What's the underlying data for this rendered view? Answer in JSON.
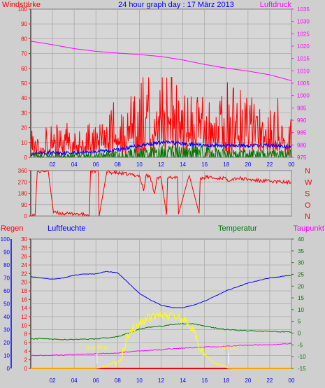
{
  "header": {
    "left_label": "Windstärke",
    "title": "24 hour graph day : 17 März 2013",
    "right_label": "Luftdruck"
  },
  "colors": {
    "background": "#cfcfcf",
    "plot_background": "#d6d6d6",
    "grid": "#aaaaaa",
    "red": "#ff0000",
    "blue": "#0000ff",
    "green": "#007700",
    "magenta": "#ff00ff",
    "yellow": "#ffff00",
    "light_blue": "#cfe6ff",
    "white": "#ffffff"
  },
  "bottom_labels": {
    "regen": "Regen",
    "luftfeuchte": "Luftfeuchte",
    "temperatur": "Temperatur",
    "taupunkt": "Taupunkt",
    "sun_rise": "Sun Rise",
    "sun_set": "Sun Set"
  },
  "chart_data": [
    {
      "type": "line",
      "name": "wind",
      "xlim": [
        0,
        24
      ],
      "x_ticks": [
        "02",
        "04",
        "06",
        "08",
        "10",
        "12",
        "14",
        "16",
        "18",
        "20",
        "22",
        "00"
      ],
      "left_axis": {
        "label": "Windstärke",
        "ylim": [
          0,
          100
        ],
        "ticks": [
          0,
          10,
          20,
          30,
          40,
          50,
          60,
          70,
          80,
          90,
          100
        ]
      },
      "right_axis": {
        "label": "Luftdruck",
        "ylim": [
          975,
          1035
        ],
        "ticks": [
          975,
          980,
          985,
          990,
          995,
          1000,
          1005,
          1010,
          1015,
          1020,
          1025,
          1030,
          1035
        ]
      },
      "series": [
        {
          "color": "red",
          "axis": "left",
          "x": [
            0,
            1,
            2,
            3,
            4,
            5,
            6,
            7,
            8,
            9,
            10,
            11,
            12,
            13,
            14,
            15,
            16,
            17,
            18,
            19,
            20,
            21,
            22,
            23,
            24
          ],
          "values": [
            6,
            7,
            7,
            8,
            7,
            7,
            8,
            12,
            13,
            14,
            17,
            19,
            21,
            20,
            18,
            18,
            17,
            16,
            15,
            15,
            14,
            14,
            13,
            12,
            11
          ]
        },
        {
          "color": "blue",
          "axis": "left",
          "x": [
            0,
            2,
            4,
            6,
            8,
            10,
            12,
            13,
            14,
            16,
            18,
            20,
            22,
            24
          ],
          "values": [
            2,
            3,
            3,
            4,
            5,
            8,
            10,
            10,
            9,
            8,
            8,
            8,
            8,
            7
          ]
        },
        {
          "color": "green",
          "axis": "left",
          "x": [
            0,
            4,
            8,
            12,
            16,
            20,
            24
          ],
          "values": [
            1,
            1,
            2,
            3,
            3,
            2,
            2
          ]
        },
        {
          "color": "magenta",
          "axis": "right",
          "x": [
            0,
            2,
            4,
            6,
            8,
            10,
            12,
            14,
            16,
            18,
            20,
            22,
            24
          ],
          "values": [
            1022.0,
            1020.6,
            1019.0,
            1017.9,
            1017.2,
            1016.6,
            1015.8,
            1014.4,
            1012.6,
            1011.1,
            1009.9,
            1008.4,
            1006.0
          ]
        }
      ]
    },
    {
      "type": "line",
      "name": "wind direction",
      "xlim": [
        0,
        24
      ],
      "x_ticks": [
        "02",
        "04",
        "06",
        "08",
        "10",
        "12",
        "14",
        "16",
        "18",
        "20",
        "22",
        "00"
      ],
      "left_axis": {
        "ylim": [
          0,
          360
        ],
        "ticks": [
          0,
          90,
          180,
          270,
          360
        ]
      },
      "right_axis": {
        "labels": [
          "N",
          "W",
          "S",
          "O",
          "N"
        ]
      },
      "series": [
        {
          "color": "red",
          "x": [
            0,
            0.4,
            0.6,
            1.1,
            1.6,
            2.1,
            3.2,
            3.5,
            4.0,
            4.5,
            5.0,
            5.4,
            5.5,
            6.2,
            6.3,
            7.0,
            8.0,
            9.0,
            10.0,
            10.4,
            10.6,
            11.0,
            11.4,
            11.6,
            12.0,
            12.5,
            12.6,
            13.5,
            13.6,
            14.5,
            14.6,
            15.5,
            15.6,
            16.5,
            17.0,
            17.8,
            18.0,
            19.0,
            20.0,
            21.0,
            22.0,
            23.0,
            24.0
          ],
          "values": [
            5,
            5,
            350,
            355,
            360,
            25,
            20,
            15,
            20,
            15,
            10,
            10,
            355,
            355,
            0,
            350,
            340,
            330,
            320,
            200,
            320,
            310,
            180,
            300,
            300,
            10,
            300,
            310,
            15,
            300,
            320,
            20,
            300,
            310,
            295,
            305,
            285,
            300,
            290,
            280,
            275,
            270,
            265
          ]
        }
      ]
    },
    {
      "type": "line",
      "name": "humidity temperature",
      "xlim": [
        0,
        24
      ],
      "x_ticks": [
        "02",
        "04",
        "06",
        "08",
        "10",
        "12",
        "14",
        "16",
        "18",
        "20",
        "22",
        "00"
      ],
      "left_axis_regen": {
        "label": "Regen",
        "ylim": [
          0,
          30
        ],
        "ticks": [
          0,
          2,
          4,
          6,
          8,
          10,
          12,
          14,
          16,
          18,
          20,
          22,
          24,
          26,
          28,
          30
        ]
      },
      "left_axis_luftfeuchte": {
        "label": "Luftfeuchte",
        "ylim": [
          0,
          100
        ],
        "ticks": [
          0,
          10,
          20,
          30,
          40,
          50,
          60,
          70,
          80,
          90,
          100
        ]
      },
      "right_axis_temperatur": {
        "label": "Temperatur",
        "ylim": [
          -15,
          40
        ],
        "ticks": [
          -15,
          -10,
          -5,
          0,
          5,
          10,
          15,
          20,
          25,
          30,
          35,
          40
        ]
      },
      "annotations": [
        "Sun Rise",
        "Sun Set"
      ],
      "series": [
        {
          "color": "blue",
          "axis": "luftfeuchte",
          "x": [
            0,
            1,
            2,
            3,
            4,
            5,
            6,
            7,
            8,
            9,
            10,
            11,
            12,
            13,
            14,
            15,
            16,
            17,
            18,
            19,
            20,
            21,
            22,
            23,
            24
          ],
          "values": [
            71,
            70,
            69,
            70,
            72,
            73,
            73,
            75,
            74,
            66,
            58,
            53,
            49,
            47,
            47,
            49,
            52,
            56,
            60,
            63,
            66,
            68,
            70,
            71,
            72
          ]
        },
        {
          "color": "green",
          "axis": "temperatur",
          "x": [
            0,
            1,
            2,
            3,
            4,
            5,
            6,
            7,
            8,
            9,
            10,
            11,
            12,
            13,
            14,
            15,
            16,
            17,
            18,
            19,
            20,
            21,
            22,
            23,
            24
          ],
          "values": [
            -2.5,
            -2.3,
            -2.5,
            -2.7,
            -2.7,
            -2.6,
            -2.4,
            -2.0,
            -1.5,
            0.0,
            1.7,
            2.6,
            3.0,
            3.6,
            4.0,
            4.0,
            3.0,
            2.2,
            1.5,
            1.2,
            1.0,
            0.9,
            0.8,
            0.6,
            0.4
          ]
        },
        {
          "color": "magenta",
          "axis": "temperatur",
          "x": [
            0,
            2,
            4,
            6,
            8,
            10,
            12,
            14,
            16,
            18,
            20,
            22,
            24
          ],
          "values": [
            -9.5,
            -9.4,
            -9.1,
            -8.8,
            -8.4,
            -7.6,
            -7.0,
            -6.4,
            -5.9,
            -5.6,
            -5.1,
            -4.9,
            -4.5
          ]
        },
        {
          "color": "red",
          "axis": "regen",
          "x": [
            0,
            24
          ],
          "values": [
            0,
            0
          ]
        },
        {
          "color": "yellow",
          "axis": "temperatur",
          "x": [
            0,
            6.0,
            7.0,
            7.8,
            8.2,
            8.6,
            9.0,
            9.4,
            10.0,
            11.0,
            12.0,
            13.0,
            14.0,
            14.6,
            15.0,
            15.6,
            16.2,
            17.0,
            17.8,
            18.2,
            24
          ],
          "values": [
            -15,
            -15,
            -14,
            -12,
            -11,
            -7,
            0,
            2,
            4,
            7,
            8,
            7.5,
            6,
            4,
            0,
            -6,
            -10,
            -13,
            -14,
            -15,
            -15
          ]
        }
      ]
    }
  ]
}
